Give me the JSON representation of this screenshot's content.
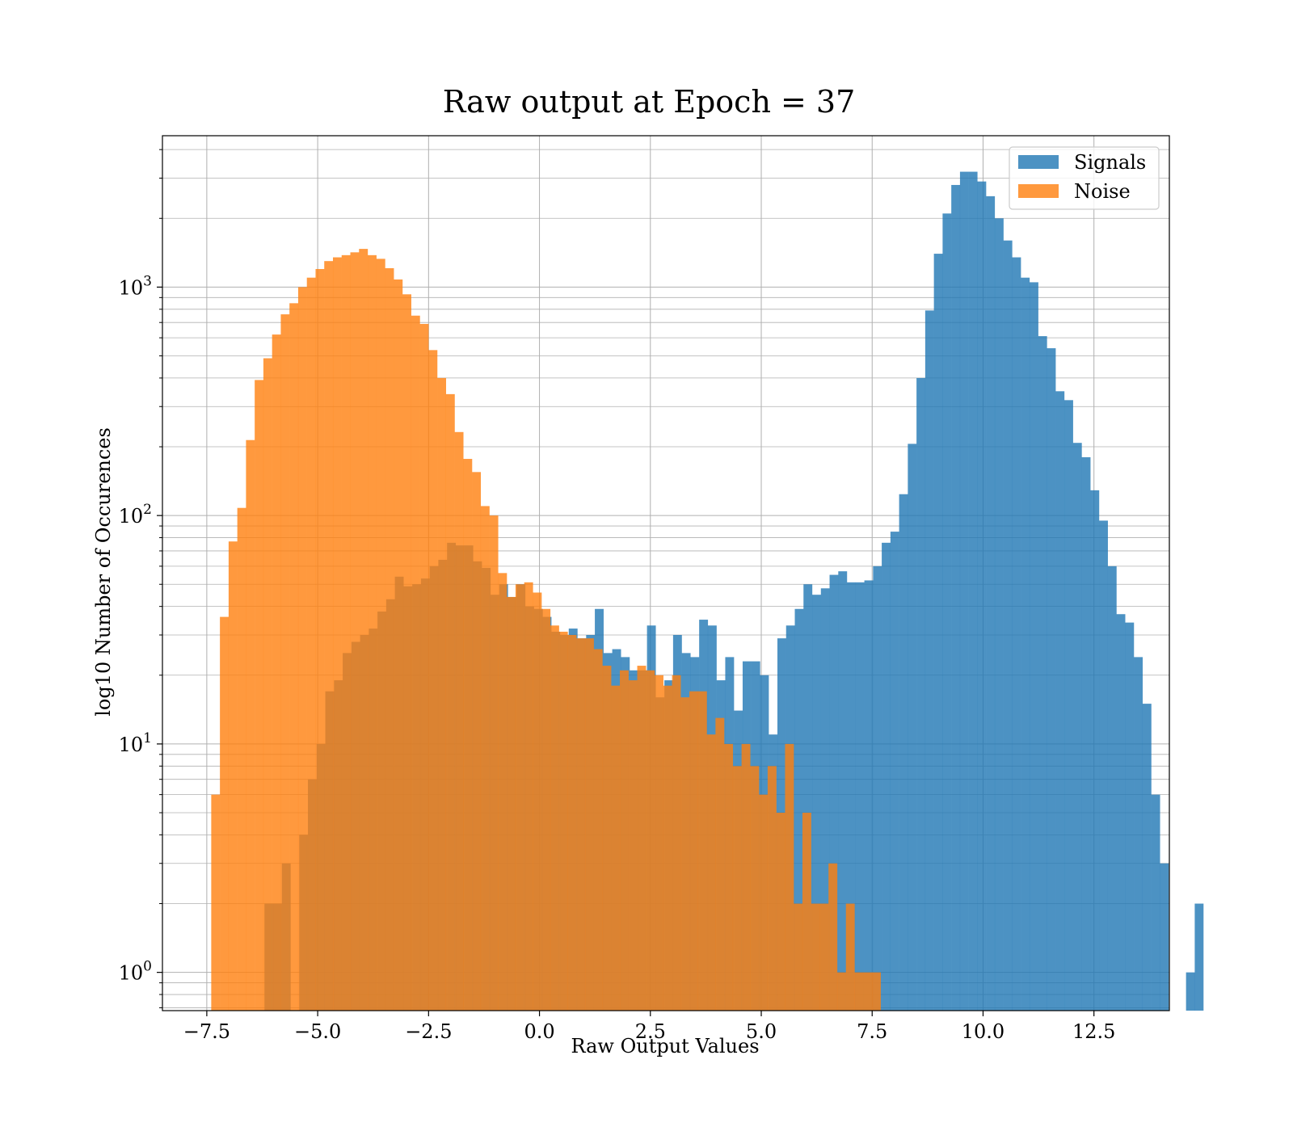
{
  "chart_data": {
    "type": "bar",
    "title": "Raw output at Epoch = 37",
    "xlabel": "Raw Output Values",
    "ylabel": "log10 Number of Occurences",
    "xlim": [
      -8.5,
      14.2
    ],
    "ylim": [
      0.68,
      4600
    ],
    "yscale": "log",
    "grid": true,
    "legend_position": "top-right",
    "x_ticks": [
      -7.5,
      -5.0,
      -2.5,
      0.0,
      2.5,
      5.0,
      7.5,
      10.0,
      12.5
    ],
    "x_tick_labels": [
      "−7.5",
      "−5.0",
      "−2.5",
      "0.0",
      "2.5",
      "5.0",
      "7.5",
      "10.0",
      "12.5"
    ],
    "y_major_ticks": [
      1,
      10,
      100,
      1000
    ],
    "y_tick_labels": [
      {
        "base": "10",
        "exp": "0"
      },
      {
        "base": "10",
        "exp": "1"
      },
      {
        "base": "10",
        "exp": "2"
      },
      {
        "base": "10",
        "exp": "3"
      }
    ],
    "series": [
      {
        "name": "Signals",
        "color": "#1f77b4",
        "opacity": 0.8,
        "bin_start": -6.2,
        "bin_width": 0.196,
        "values": [
          2,
          2,
          3,
          0,
          4,
          7,
          10,
          17,
          19,
          25,
          28,
          30,
          32,
          38,
          43,
          54,
          49,
          50,
          53,
          60,
          64,
          76,
          74,
          74,
          63,
          59,
          45,
          50,
          44,
          50,
          40,
          39,
          36,
          31,
          30,
          32,
          29,
          30,
          39,
          25,
          26,
          24,
          21,
          21,
          33,
          16,
          19,
          30,
          25,
          24,
          35,
          33,
          19,
          24,
          14,
          23,
          23,
          20,
          11,
          29,
          33,
          39,
          50,
          45,
          48,
          55,
          57,
          51,
          51,
          52,
          60,
          76,
          85,
          124,
          206,
          400,
          790,
          1400,
          2100,
          2800,
          3200,
          3200,
          2900,
          2500,
          2000,
          1600,
          1350,
          1100,
          1050,
          610,
          540,
          350,
          320,
          208,
          180,
          129,
          95,
          60,
          37,
          34,
          24,
          15,
          6,
          3,
          0,
          0,
          1,
          2
        ]
      },
      {
        "name": "Noise",
        "color": "#ff7f0e",
        "opacity": 0.8,
        "bin_start": -7.4,
        "bin_width": 0.196,
        "values": [
          6,
          36,
          77,
          108,
          214,
          392,
          488,
          620,
          760,
          850,
          1000,
          1100,
          1200,
          1300,
          1350,
          1380,
          1420,
          1470,
          1380,
          1330,
          1210,
          1080,
          930,
          750,
          690,
          530,
          400,
          340,
          232,
          177,
          155,
          110,
          100,
          56,
          44,
          50,
          51,
          46,
          39,
          33,
          31,
          30,
          29,
          29,
          26,
          22,
          18,
          21,
          19,
          22,
          21,
          20,
          18,
          20,
          16,
          17,
          17,
          11,
          13,
          10,
          8,
          10,
          8,
          6,
          8,
          5,
          10,
          2,
          5,
          2,
          2,
          3,
          1,
          2,
          1,
          1,
          1
        ]
      }
    ]
  }
}
